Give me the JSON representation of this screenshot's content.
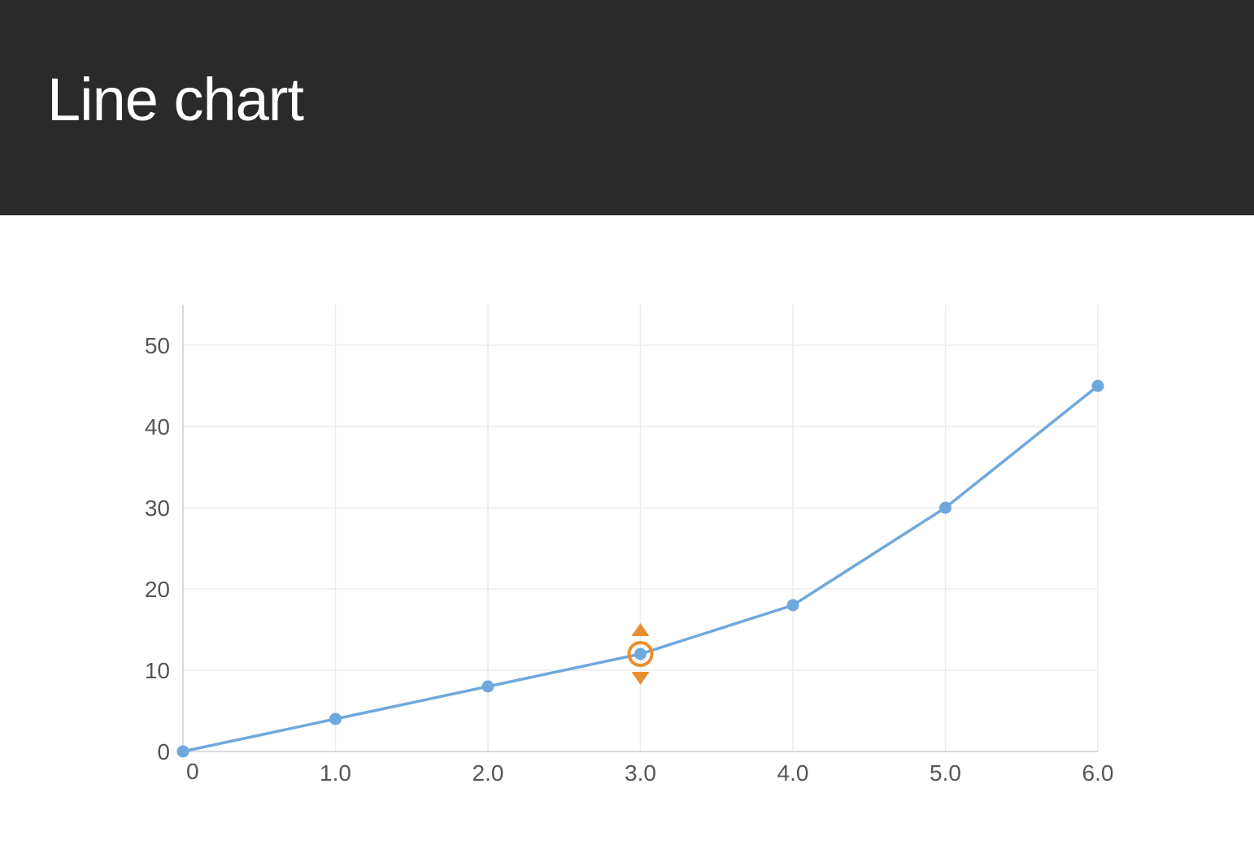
{
  "header": {
    "title": "Line chart",
    "bg_color": "#2a2a2a",
    "text_color": "#ffffff",
    "title_fontsize": 74
  },
  "chart": {
    "type": "line",
    "background_color": "#ffffff",
    "grid_color": "#ececec",
    "axis_color": "#cfcfcf",
    "tick_label_color": "#555555",
    "tick_fontsize": 28,
    "line_color": "#6fa8dc",
    "marker_color": "#6fa8dc",
    "marker_radius": 7.5,
    "line_width": 3.5,
    "selection_color": "#e8902f",
    "selection_ring_radius": 14,
    "selection_ring_width": 4,
    "x": {
      "min": 0,
      "max": 6,
      "ticks": [
        0,
        1,
        2,
        3,
        4,
        5,
        6
      ],
      "tick_labels": [
        "0",
        "1.0",
        "2.0",
        "3.0",
        "4.0",
        "5.0",
        "6.0"
      ]
    },
    "y": {
      "min": 0,
      "max": 55,
      "ticks": [
        0,
        10,
        20,
        30,
        40,
        50
      ],
      "tick_labels": [
        "0",
        "10",
        "20",
        "30",
        "40",
        "50"
      ]
    },
    "series": {
      "x": [
        0,
        1,
        2,
        3,
        4,
        5,
        6
      ],
      "y": [
        0,
        4,
        8,
        12,
        18,
        30,
        45
      ]
    },
    "selected_point_index": 3
  }
}
